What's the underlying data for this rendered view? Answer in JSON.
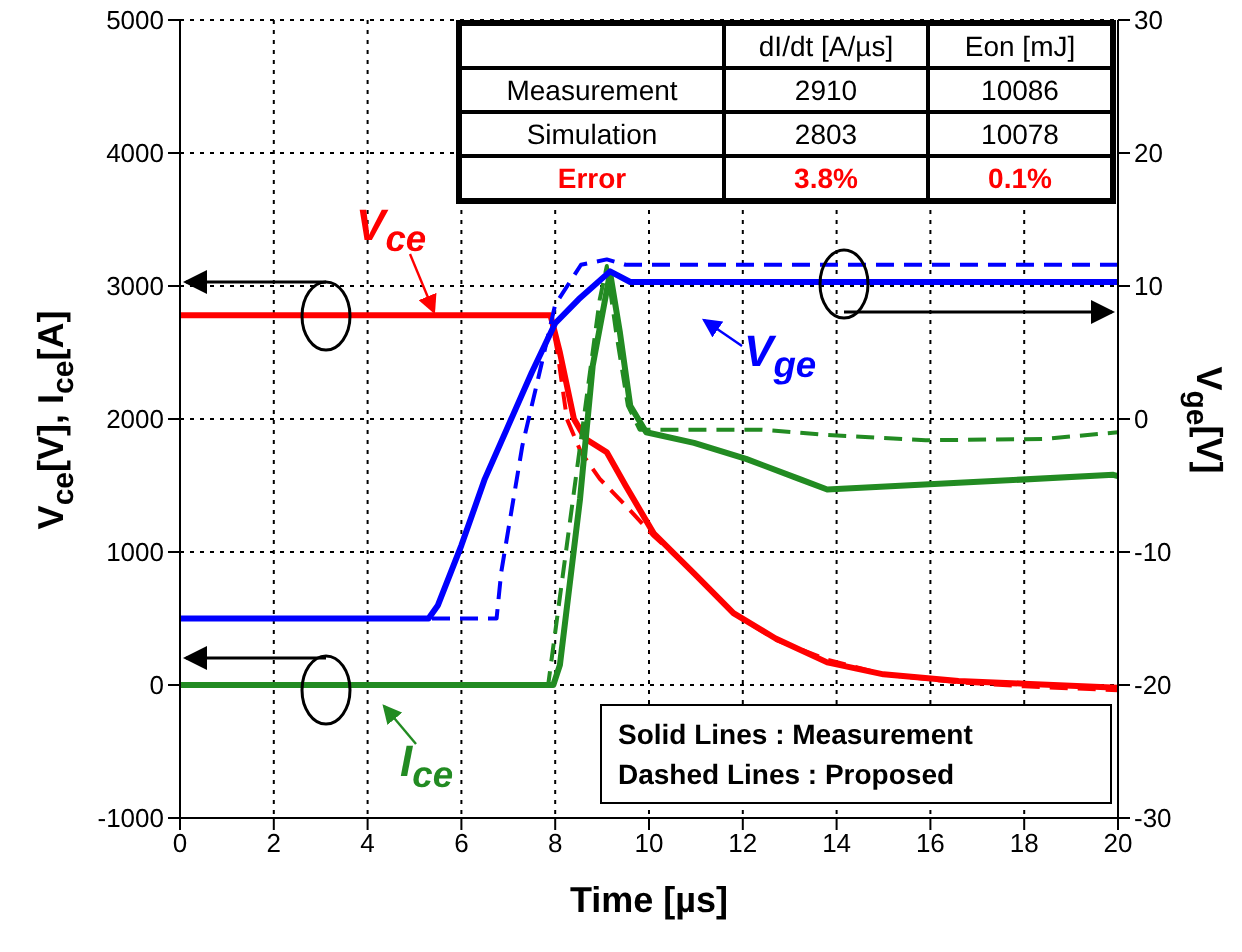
{
  "chart_data": {
    "type": "line",
    "xlabel": "Time [µs]",
    "ylabel": "V$_{ce}$[V], I$_{ce}$[A]",
    "y2label": "V$_{ge}$[V]",
    "xlim": [
      0,
      20
    ],
    "xticks": [
      0,
      2,
      4,
      6,
      8,
      10,
      12,
      14,
      16,
      18,
      20
    ],
    "ylim": [
      -1000,
      5000
    ],
    "yticks": [
      -1000,
      0,
      1000,
      2000,
      3000,
      4000,
      5000
    ],
    "y2lim": [
      -30,
      30
    ],
    "y2ticks": [
      -30,
      -20,
      -10,
      0,
      10,
      20,
      30
    ],
    "grid": true,
    "series": [
      {
        "name": "V$_{ce}$",
        "color": "#ff0000",
        "line_style": "solid",
        "x": [
          0,
          7.9,
          8.1,
          8.4,
          8.65,
          9.1,
          9.5,
          10.1,
          10.96,
          11.8,
          12.7,
          13.8,
          15,
          16.6,
          18,
          20
        ],
        "values": [
          2780,
          2780,
          2500,
          2000,
          1850,
          1750,
          1500,
          1140,
          840,
          540,
          350,
          170,
          80,
          30,
          10,
          -20
        ]
      },
      {
        "color": "#ff0000",
        "line_style": "dashed",
        "x": [
          0,
          7.9,
          8.05,
          8.25,
          8.55,
          8.95,
          9.5,
          10.1,
          11,
          11.8,
          12.7,
          13.8,
          15,
          16.6,
          18,
          20
        ],
        "values": [
          2780,
          2780,
          2500,
          2000,
          1750,
          1550,
          1350,
          1120,
          830,
          540,
          340,
          190,
          80,
          20,
          -10,
          -40
        ]
      },
      {
        "name": "I$_{ce}$",
        "color": "#228b22",
        "line_style": "solid",
        "x": [
          0,
          7.96,
          8.1,
          8.53,
          8.8,
          9.17,
          9.38,
          9.6,
          9.94,
          10.96,
          12.07,
          13.2,
          13.8,
          16.6,
          19.9,
          20
        ],
        "values": [
          0,
          0,
          150,
          1400,
          2400,
          3100,
          2650,
          2100,
          1900,
          1820,
          1700,
          1550,
          1470,
          1520,
          1580,
          1570
        ]
      },
      {
        "color": "#228b22",
        "line_style": "dashed",
        "x": [
          0,
          7.85,
          8.38,
          8.95,
          9.1,
          9.3,
          9.55,
          9.8,
          12.4,
          13.8,
          15.9,
          18.4,
          20
        ],
        "values": [
          0,
          0,
          1400,
          2900,
          3150,
          2650,
          2100,
          1920,
          1920,
          1880,
          1840,
          1850,
          1900
        ]
      },
      {
        "name": "V$_{ge}$",
        "color": "#0000ff",
        "line_style": "solid",
        "axis": "y2",
        "x": [
          0,
          5.3,
          5.5,
          6,
          6.5,
          7,
          7.5,
          8,
          8.5,
          9.17,
          9.6,
          20
        ],
        "values": [
          -15,
          -15,
          -14,
          -9.5,
          -4.5,
          -0.5,
          3.5,
          7.2,
          9,
          11.1,
          10.3,
          10.3
        ]
      },
      {
        "color": "#0000ff",
        "line_style": "dashed",
        "axis": "y2",
        "x": [
          0,
          6.75,
          6.85,
          7.3,
          7.7,
          8,
          8.55,
          9.1,
          9.5,
          20
        ],
        "values": [
          -15,
          -15,
          -11.5,
          -2,
          4,
          8.6,
          11.6,
          12,
          11.6,
          11.6
        ]
      }
    ],
    "annotations": [
      "dI/dt [A/µs]",
      "Eon [mJ]",
      "Measurement",
      "2910",
      "10086",
      "Simulation",
      "2803",
      "10078",
      "Error",
      "3.8%",
      "0.1%",
      "Solid Lines : Measurement",
      "Dashed Lines : Proposed"
    ]
  }
}
